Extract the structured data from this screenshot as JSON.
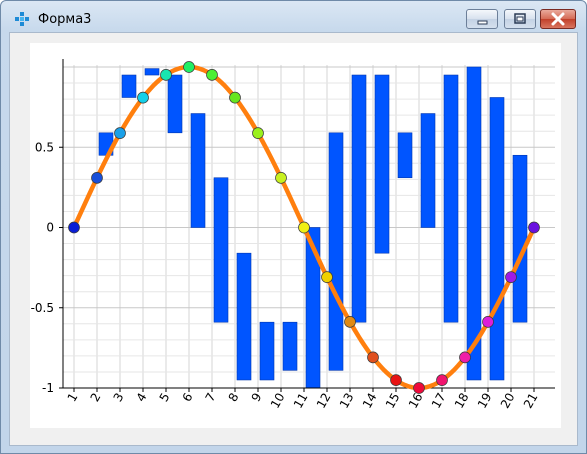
{
  "window": {
    "title": "Форма3",
    "icons": {
      "app": "app-grid-icon",
      "minimize": "minimize-icon",
      "maximize": "maximize-icon",
      "close": "close-icon"
    }
  },
  "chart_data": {
    "type": "bar",
    "title": "",
    "xlabel": "",
    "ylabel": "",
    "categories": [
      "1",
      "2",
      "3",
      "4",
      "5",
      "6",
      "7",
      "8",
      "9",
      "10",
      "11",
      "12",
      "13",
      "14",
      "15",
      "16",
      "17",
      "18",
      "19",
      "20",
      "21"
    ],
    "ylim": [
      -1,
      1
    ],
    "yticks": [
      "0.5",
      "0",
      "-0.5",
      "-1"
    ],
    "grid": true,
    "legend": "none",
    "series": [
      {
        "type": "floating-bar",
        "color": "#0055ff",
        "ranges": [
          null,
          [
            0.45,
            0.59
          ],
          [
            0.81,
            0.95
          ],
          [
            0.95,
            0.99
          ],
          [
            0.59,
            0.95
          ],
          [
            0.0,
            0.71
          ],
          [
            -0.59,
            0.31
          ],
          [
            -0.95,
            -0.16
          ],
          [
            -0.95,
            -0.59
          ],
          [
            -0.89,
            -0.59
          ],
          [
            -1.0,
            0.0
          ],
          [
            -0.89,
            0.59
          ],
          [
            -0.59,
            0.95
          ],
          [
            -0.16,
            0.95
          ],
          [
            0.31,
            0.59
          ],
          [
            0.0,
            0.71
          ],
          [
            -0.59,
            0.95
          ],
          [
            -0.95,
            1.0
          ],
          [
            -0.95,
            0.81
          ],
          [
            -0.59,
            0.45
          ],
          null
        ]
      },
      {
        "type": "line",
        "color": "#ff7f0e",
        "values": [
          0,
          0.309,
          0.588,
          0.809,
          0.951,
          1.0,
          0.951,
          0.809,
          0.588,
          0.309,
          0,
          -0.309,
          -0.588,
          -0.809,
          -0.951,
          -1.0,
          -0.951,
          -0.809,
          -0.588,
          -0.309,
          0
        ],
        "marker_colors": [
          "#0a1ed6",
          "#1a4fd8",
          "#1aa0e8",
          "#14d0e8",
          "#19e6b0",
          "#22ee66",
          "#4cf034",
          "#66e61e",
          "#9af01c",
          "#c8f020",
          "#f0f014",
          "#f0d000",
          "#e08a14",
          "#e0501e",
          "#e81414",
          "#ee0a3a",
          "#f0146e",
          "#f01ea8",
          "#dc1ed8",
          "#a01ae6",
          "#6a10e0"
        ]
      }
    ]
  }
}
